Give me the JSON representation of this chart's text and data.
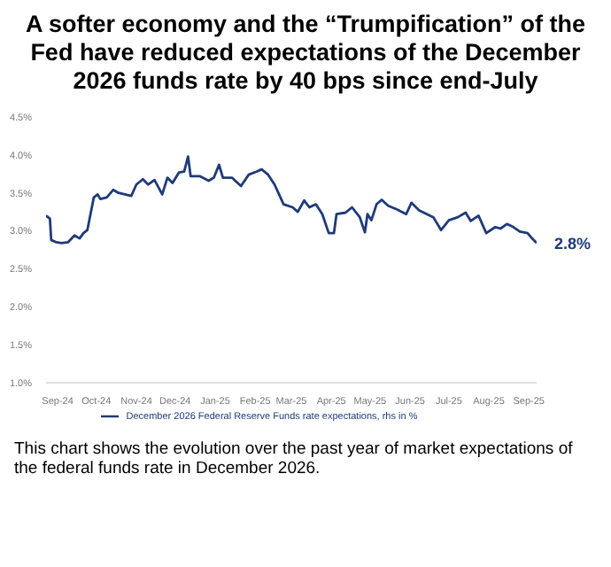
{
  "chart_data": {
    "type": "line",
    "title": "A softer economy and the “Trumpification” of the Fed have reduced expectations of the December 2026 funds rate by 40 bps since end-July",
    "x": [
      "2024-08-23",
      "2024-08-26",
      "2024-08-27",
      "2024-08-31",
      "2024-09-04",
      "2024-09-09",
      "2024-09-14",
      "2024-09-18",
      "2024-09-21",
      "2024-09-24",
      "2024-09-29",
      "2024-10-02",
      "2024-10-04",
      "2024-10-09",
      "2024-10-14",
      "2024-10-18",
      "2024-10-28",
      "2024-11-01",
      "2024-11-06",
      "2024-11-10",
      "2024-11-15",
      "2024-11-21",
      "2024-11-25",
      "2024-11-29",
      "2024-12-04",
      "2024-12-08",
      "2024-12-11",
      "2024-12-13",
      "2024-12-20",
      "2024-12-27",
      "2024-12-31",
      "2025-01-04",
      "2025-01-07",
      "2025-01-14",
      "2025-01-21",
      "2025-01-27",
      "2025-02-02",
      "2025-02-06",
      "2025-02-11",
      "2025-02-16",
      "2025-02-23",
      "2025-03-02",
      "2025-03-06",
      "2025-03-11",
      "2025-03-15",
      "2025-03-20",
      "2025-03-25",
      "2025-03-30",
      "2025-04-03",
      "2025-04-05",
      "2025-04-12",
      "2025-04-17",
      "2025-04-23",
      "2025-04-27",
      "2025-04-29",
      "2025-05-02",
      "2025-05-06",
      "2025-05-10",
      "2025-05-15",
      "2025-05-22",
      "2025-05-29",
      "2025-06-02",
      "2025-06-08",
      "2025-06-14",
      "2025-06-19",
      "2025-06-25",
      "2025-07-01",
      "2025-07-08",
      "2025-07-14",
      "2025-07-18",
      "2025-07-24",
      "2025-07-30",
      "2025-08-06",
      "2025-08-10",
      "2025-08-15",
      "2025-08-20",
      "2025-08-25",
      "2025-08-31",
      "2025-09-03",
      "2025-09-07"
    ],
    "series": [
      {
        "name": "December 2026 Federal Reserve Funds rate expectations, rhs in %",
        "color": "#1f3a7a",
        "values": [
          3.2,
          3.16,
          2.88,
          2.85,
          2.84,
          2.85,
          2.94,
          2.9,
          2.97,
          3.01,
          3.44,
          3.48,
          3.42,
          3.44,
          3.54,
          3.5,
          3.46,
          3.61,
          3.68,
          3.61,
          3.67,
          3.48,
          3.7,
          3.63,
          3.77,
          3.78,
          3.98,
          3.72,
          3.72,
          3.66,
          3.7,
          3.87,
          3.7,
          3.7,
          3.59,
          3.74,
          3.78,
          3.81,
          3.74,
          3.61,
          3.35,
          3.31,
          3.25,
          3.4,
          3.31,
          3.35,
          3.22,
          2.97,
          2.97,
          3.22,
          3.24,
          3.31,
          3.18,
          2.98,
          3.22,
          3.14,
          3.35,
          3.41,
          3.33,
          3.28,
          3.22,
          3.37,
          3.27,
          3.22,
          3.18,
          3.01,
          3.14,
          3.18,
          3.24,
          3.13,
          3.2,
          2.97,
          3.05,
          3.03,
          3.09,
          3.05,
          2.99,
          2.97,
          2.91,
          2.84
        ]
      }
    ],
    "xlim": [
      "2024-08-23",
      "2025-09-07"
    ],
    "xticks": [
      {
        "value": "2024-09-01",
        "label": "Sep-24"
      },
      {
        "value": "2024-10-01",
        "label": "Oct-24"
      },
      {
        "value": "2024-11-01",
        "label": "Nov-24"
      },
      {
        "value": "2024-12-01",
        "label": "Dec-24"
      },
      {
        "value": "2025-01-01",
        "label": "Jan-25"
      },
      {
        "value": "2025-02-01",
        "label": "Feb-25"
      },
      {
        "value": "2025-03-01",
        "label": "Mar-25"
      },
      {
        "value": "2025-04-01",
        "label": "Apr-25"
      },
      {
        "value": "2025-05-01",
        "label": "May-25"
      },
      {
        "value": "2025-06-01",
        "label": "Jun-25"
      },
      {
        "value": "2025-07-01",
        "label": "Jul-25"
      },
      {
        "value": "2025-08-01",
        "label": "Aug-25"
      },
      {
        "value": "2025-09-01",
        "label": "Sep-25"
      }
    ],
    "ylim": [
      1,
      4.5
    ],
    "yticks": [
      {
        "value": 1,
        "label": "1.0%"
      },
      {
        "value": 1.5,
        "label": "1.5%"
      },
      {
        "value": 2,
        "label": "2.0%"
      },
      {
        "value": 2.5,
        "label": "2.5%"
      },
      {
        "value": 3,
        "label": "3.0%"
      },
      {
        "value": 3.5,
        "label": "3.5%"
      },
      {
        "value": 4,
        "label": "4.0%"
      },
      {
        "value": 4.5,
        "label": "4.5%"
      }
    ],
    "grid": false,
    "legend": "bottom",
    "marker": "none",
    "line_style": "solid",
    "annotations": [
      {
        "text": "2.8%",
        "x": "2025-09-07",
        "y": 2.84
      },
      "This chart shows the evolution over the past year of market expectations of the federal funds rate in December 2026."
    ]
  }
}
